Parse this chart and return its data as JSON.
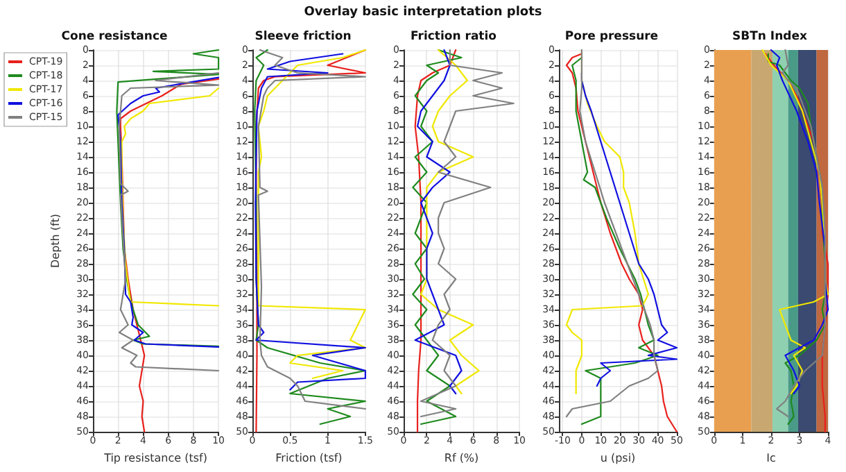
{
  "chart_data": [
    {
      "type": "line",
      "title": "Cone resistance",
      "xlabel": "Tip resistance (tsf)",
      "ylabel": "Depth (ft)",
      "annotations": [
        "Overlay basic interpretation plots"
      ],
      "orientation": "horizontal",
      "xlim": [
        0,
        10
      ],
      "xticks": [
        0,
        2,
        4,
        6,
        8,
        10
      ],
      "ylim": [
        50,
        0
      ],
      "yticks": [
        0,
        2,
        4,
        6,
        8,
        10,
        12,
        14,
        16,
        18,
        20,
        22,
        24,
        26,
        28,
        30,
        32,
        34,
        36,
        38,
        40,
        42,
        44,
        46,
        48,
        50
      ],
      "grid": true,
      "legend": "left",
      "marker": "none",
      "line_style": "solid",
      "series": [
        {
          "name": "CPT-19",
          "color": "#e8201c",
          "x": [
            3.8,
            4.5,
            5.5,
            6,
            8,
            9,
            10,
            14,
            20,
            26,
            30,
            34,
            36,
            38,
            40,
            42,
            44,
            46,
            48,
            50
          ],
          "values": [
            10,
            7,
            6,
            5.5,
            3,
            2.2,
            2.2,
            2.3,
            2.4,
            2.5,
            2.8,
            3.2,
            3.5,
            3.8,
            4.1,
            3.9,
            3.7,
            4,
            3.9,
            4.1
          ]
        },
        {
          "name": "CPT-18",
          "color": "#1e8a1e",
          "x": [
            0,
            0.5,
            1,
            2.5,
            2.8,
            3.2,
            4.2,
            8,
            12,
            20,
            26,
            30,
            32,
            34,
            36,
            37.5,
            38,
            38.5,
            38.8
          ],
          "values": [
            10,
            8,
            10,
            10,
            4.8,
            10,
            2,
            1.9,
            2,
            2.2,
            2.4,
            2.7,
            2.9,
            3.2,
            3.6,
            4.5,
            3.2,
            4,
            10
          ]
        },
        {
          "name": "CPT-17",
          "color": "#f0e800",
          "x": [
            5,
            6,
            7,
            8,
            9,
            10,
            11,
            12,
            16,
            22,
            28,
            32,
            33,
            33.5
          ],
          "values": [
            10,
            9.3,
            4.5,
            4,
            3,
            2.5,
            2.6,
            2.3,
            2.3,
            2.4,
            2.6,
            2.9,
            3,
            10
          ]
        },
        {
          "name": "CPT-16",
          "color": "#1010e0",
          "x": [
            3.6,
            5,
            5.5,
            6,
            7,
            8.5,
            12,
            20,
            26,
            32,
            33,
            35,
            36,
            37,
            38,
            38.5,
            38.9
          ],
          "values": [
            10,
            5,
            5.3,
            4,
            3,
            2,
            2.2,
            2.3,
            2.5,
            2.6,
            3,
            3.2,
            3.1,
            4,
            3.3,
            4.2,
            10
          ]
        },
        {
          "name": "CPT-15",
          "color": "#808080",
          "x": [
            3,
            4,
            4.6,
            5,
            6,
            10,
            17.5,
            18.5,
            19,
            30,
            32,
            34,
            36,
            37,
            38,
            39,
            40,
            41,
            41.5,
            42
          ],
          "values": [
            10,
            5,
            10,
            3,
            2.3,
            2.1,
            2.2,
            2.8,
            2.2,
            2.6,
            2.4,
            2.2,
            2.8,
            2.1,
            3.2,
            2.3,
            3.5,
            3,
            3.4,
            10
          ]
        }
      ]
    },
    {
      "type": "line",
      "title": "Sleeve friction",
      "xlabel": "Friction (tsf)",
      "orientation": "horizontal",
      "xlim": [
        0,
        1.5
      ],
      "xticks": [
        0,
        0.5,
        1,
        1.5
      ],
      "ylim": [
        50,
        0
      ],
      "yticks": [
        0,
        2,
        4,
        6,
        8,
        10,
        12,
        14,
        16,
        18,
        20,
        22,
        24,
        26,
        28,
        30,
        32,
        34,
        36,
        38,
        40,
        42,
        44,
        46,
        48,
        50
      ],
      "grid": true,
      "marker": "none",
      "line_style": "solid",
      "series": [
        {
          "color": "#e8201c",
          "x": [
            0,
            2,
            3,
            3.5,
            4,
            5,
            10,
            20,
            30,
            40,
            50
          ],
          "values": [
            1.5,
            1,
            1.5,
            0.3,
            0.15,
            0.08,
            0.05,
            0.05,
            0.06,
            0.06,
            0.05
          ]
        },
        {
          "color": "#1e8a1e",
          "x": [
            0,
            1,
            2,
            3,
            4,
            8,
            20,
            30,
            36,
            38,
            39,
            41,
            42,
            43,
            45,
            46,
            47,
            48,
            49
          ],
          "values": [
            0.2,
            0.05,
            0.15,
            0.1,
            0.05,
            0.03,
            0.05,
            0.05,
            0.08,
            0.05,
            0.2,
            0.9,
            1.5,
            1,
            0.5,
            1.5,
            1,
            1.3,
            0.9
          ]
        },
        {
          "color": "#f0e800",
          "x": [
            0,
            1,
            2,
            3,
            4,
            5,
            6,
            8,
            10,
            14,
            16,
            30,
            33.5,
            34,
            38,
            39,
            40,
            41,
            42,
            43
          ],
          "values": [
            1.5,
            1.2,
            0.6,
            0.5,
            0.4,
            0.3,
            0.2,
            0.15,
            0.08,
            0.12,
            0.08,
            0.08,
            0.08,
            1.5,
            1.3,
            1.5,
            0.6,
            0.5,
            1.2,
            0.8
          ]
        },
        {
          "color": "#1010e0",
          "x": [
            0.5,
            1.5,
            2.5,
            3,
            3.5,
            5,
            8,
            20,
            30,
            36,
            37,
            38,
            39,
            40,
            42,
            43,
            43.5,
            44.5
          ],
          "values": [
            1.2,
            0.5,
            0.2,
            1,
            0.2,
            0.12,
            0.06,
            0.04,
            0.05,
            0.08,
            0.15,
            0.05,
            1.5,
            0.8,
            1.5,
            1.5,
            0.6,
            0.5
          ]
        },
        {
          "color": "#808080",
          "x": [
            0,
            1,
            2,
            3,
            3.5,
            4,
            5,
            6,
            10,
            18,
            18.5,
            19,
            31,
            38,
            40,
            41.5,
            43,
            44,
            46,
            47
          ],
          "values": [
            0.1,
            0.4,
            0.3,
            0.6,
            1.5,
            0.3,
            0.2,
            0.15,
            0.08,
            0.1,
            0.2,
            0.08,
            0.12,
            0.1,
            0.12,
            0.2,
            0.5,
            0.6,
            0.7,
            1.5
          ]
        }
      ]
    },
    {
      "type": "line",
      "title": "Friction ratio",
      "xlabel": "Rf (%)",
      "orientation": "horizontal",
      "xlim": [
        0,
        10
      ],
      "xticks": [
        0,
        2,
        4,
        6,
        8,
        10
      ],
      "ylim": [
        50,
        0
      ],
      "yticks": [
        0,
        2,
        4,
        6,
        8,
        10,
        12,
        14,
        16,
        18,
        20,
        22,
        24,
        26,
        28,
        30,
        32,
        34,
        36,
        38,
        40,
        42,
        44,
        46,
        48,
        50
      ],
      "grid": true,
      "marker": "none",
      "line_style": "solid",
      "series": [
        {
          "color": "#e8201c",
          "x": [
            0,
            2,
            3,
            4,
            6,
            10,
            14,
            20,
            30,
            38,
            42,
            46,
            50
          ],
          "values": [
            4.5,
            4,
            2.5,
            1.5,
            1.2,
            1,
            1.3,
            1.5,
            1.5,
            1.5,
            1.3,
            1.2,
            1.2
          ]
        },
        {
          "color": "#1e8a1e",
          "x": [
            0,
            1,
            2,
            3,
            4,
            6,
            8,
            10,
            12,
            14,
            16,
            18,
            20,
            22,
            24,
            26,
            28,
            30,
            32,
            34,
            36,
            38,
            40,
            42,
            44,
            46,
            48,
            49
          ],
          "values": [
            3,
            5,
            2,
            3,
            2,
            1,
            2,
            1.5,
            2.5,
            1,
            2,
            0.8,
            2,
            1.5,
            1,
            2,
            1,
            1.8,
            0.8,
            2,
            1,
            2,
            3,
            2,
            4,
            2,
            4.5,
            1.5
          ]
        },
        {
          "color": "#f0e800",
          "x": [
            0,
            2,
            4,
            6,
            8,
            10,
            12,
            14,
            16,
            18,
            22,
            26,
            30,
            32,
            34,
            36,
            38,
            40,
            42,
            44,
            45
          ],
          "values": [
            3,
            4.5,
            5.5,
            4,
            3,
            2.5,
            3,
            6,
            3,
            2,
            2,
            2,
            2,
            1.5,
            3,
            6,
            4,
            5,
            6.5,
            4.5,
            5
          ]
        },
        {
          "color": "#1010e0",
          "x": [
            0,
            2,
            4,
            6,
            8,
            10,
            12,
            14,
            16,
            18,
            20,
            22,
            24,
            26,
            28,
            30,
            32,
            34,
            36,
            38,
            40,
            42,
            44,
            45
          ],
          "values": [
            3.5,
            4,
            3.5,
            2.5,
            1.5,
            1.2,
            2.5,
            2,
            4,
            2.5,
            1.5,
            2,
            2.5,
            2,
            2,
            2,
            2.5,
            3,
            3.5,
            1,
            4.5,
            5,
            4,
            4.5
          ]
        },
        {
          "color": "#808080",
          "x": [
            0,
            2,
            3,
            4,
            5,
            6,
            7,
            8,
            10,
            12,
            14,
            16,
            18,
            20,
            22,
            24,
            26,
            28,
            30,
            32,
            34,
            36,
            38,
            40,
            42,
            44,
            46,
            47,
            48
          ],
          "values": [
            4,
            4,
            8.5,
            6,
            8.5,
            6,
            9.5,
            4.5,
            4,
            3.5,
            4.5,
            3,
            7.5,
            3.5,
            3,
            3,
            3.5,
            3,
            4.5,
            3.5,
            4,
            3,
            2.5,
            4,
            3.5,
            4.5,
            1.5,
            4.5,
            1.5
          ]
        }
      ]
    },
    {
      "type": "line",
      "title": "Pore pressure",
      "xlabel": "u (psi)",
      "orientation": "horizontal",
      "xlim": [
        -12,
        50
      ],
      "xticks": [
        -10,
        0,
        10,
        20,
        30,
        40,
        50
      ],
      "ylim": [
        50,
        0
      ],
      "yticks": [
        0,
        2,
        4,
        6,
        8,
        10,
        12,
        14,
        16,
        18,
        20,
        22,
        24,
        26,
        28,
        30,
        32,
        34,
        36,
        38,
        40,
        42,
        44,
        46,
        48,
        50
      ],
      "grid": true,
      "marker": "none",
      "line_style": "solid",
      "series": [
        {
          "color": "#e8201c",
          "x": [
            0.5,
            1,
            2,
            3,
            5,
            8,
            12,
            16,
            20,
            24,
            28,
            30,
            32,
            34,
            36,
            38,
            40,
            42,
            44,
            46,
            48,
            50
          ],
          "values": [
            0,
            -5,
            -8,
            -5,
            -3,
            -2,
            2,
            6,
            10,
            15,
            21,
            25,
            30,
            32,
            30,
            32,
            38,
            40,
            42,
            43,
            45,
            50
          ]
        },
        {
          "color": "#1e8a1e",
          "x": [
            1,
            2,
            4,
            8,
            12,
            16,
            17,
            18,
            22,
            26,
            30,
            32,
            34,
            36,
            38,
            39,
            40,
            41,
            42,
            43,
            44,
            48,
            49
          ],
          "values": [
            0,
            -5,
            -3,
            -3,
            0,
            3,
            1,
            7,
            13,
            20,
            28,
            31,
            33,
            35,
            38,
            30,
            40,
            28,
            2,
            10,
            10,
            10,
            0
          ]
        },
        {
          "color": "#f0e800",
          "x": [
            0,
            4,
            7,
            10,
            12,
            14,
            16,
            18,
            20,
            24,
            28,
            32,
            33.5,
            34,
            36,
            37,
            38,
            40,
            42,
            45
          ],
          "values": [
            0,
            0,
            3,
            8,
            12,
            20,
            22,
            22,
            25,
            28,
            30,
            35,
            32,
            -5,
            -8,
            -5,
            0,
            0,
            -3,
            -3
          ]
        },
        {
          "color": "#1010e0",
          "x": [
            3,
            4,
            6,
            8,
            12,
            16,
            20,
            24,
            28,
            30,
            32,
            34,
            36,
            37,
            38,
            39,
            40,
            40.5,
            41,
            42,
            43,
            44
          ],
          "values": [
            0,
            0,
            2,
            5,
            10,
            15,
            20,
            25,
            30,
            35,
            38,
            40,
            42,
            45,
            40,
            50,
            35,
            50,
            10,
            15,
            10,
            8
          ]
        },
        {
          "color": "#808080",
          "x": [
            0,
            5,
            8,
            12,
            16,
            20,
            24,
            28,
            32,
            36,
            38,
            40,
            42,
            43,
            44,
            45,
            46,
            47,
            48
          ],
          "values": [
            0,
            0,
            -1,
            2,
            7,
            12,
            18,
            24,
            30,
            36,
            38,
            38,
            40,
            35,
            25,
            20,
            15,
            -5,
            -8
          ]
        }
      ]
    },
    {
      "type": "line",
      "title": "SBTn Index",
      "xlabel": "Ic",
      "orientation": "horizontal",
      "xlim": [
        0,
        4
      ],
      "xticks": [
        0,
        1,
        2,
        3,
        4
      ],
      "ylim": [
        50,
        0
      ],
      "yticks": [
        0,
        2,
        4,
        6,
        8,
        10,
        12,
        14,
        16,
        18,
        20,
        22,
        24,
        26,
        28,
        30,
        32,
        34,
        36,
        38,
        40,
        42,
        44,
        46,
        48,
        50
      ],
      "grid": true,
      "marker": "none",
      "line_style": "solid",
      "bands": [
        {
          "axis": "x",
          "from": 0,
          "to": 1.31,
          "color": "#e8a050"
        },
        {
          "axis": "x",
          "from": 1.31,
          "to": 2.05,
          "color": "#c8a870"
        },
        {
          "axis": "x",
          "from": 2.05,
          "to": 2.6,
          "color": "#8fd0b0"
        },
        {
          "axis": "x",
          "from": 2.6,
          "to": 2.95,
          "color": "#4a9a88"
        },
        {
          "axis": "x",
          "from": 2.95,
          "to": 3.6,
          "color": "#3a4a70"
        },
        {
          "axis": "x",
          "from": 3.6,
          "to": 4,
          "color": "#c06840"
        }
      ],
      "series": [
        {
          "color": "#e8201c",
          "x": [
            0.5,
            2,
            4,
            6,
            8,
            10,
            12,
            16,
            20,
            24,
            28,
            32,
            36,
            40,
            44,
            48,
            50
          ],
          "values": [
            1.8,
            2.1,
            2.6,
            2.9,
            3.1,
            3.3,
            3.5,
            3.7,
            3.8,
            3.8,
            4,
            4,
            3.9,
            3.8,
            3.8,
            3.9,
            3.9
          ]
        },
        {
          "color": "#1e8a1e",
          "x": [
            0.5,
            1.5,
            2,
            4,
            5,
            7,
            10,
            14,
            18,
            22,
            28,
            32,
            34,
            36,
            38,
            40,
            41,
            42,
            44,
            46,
            48,
            49
          ],
          "values": [
            1.9,
            1.9,
            2.3,
            2.7,
            3,
            3.3,
            3.4,
            3.6,
            3.8,
            3.8,
            3.9,
            3.9,
            3.8,
            3.9,
            3.6,
            3,
            2.5,
            2.7,
            2.8,
            2.7,
            2.8,
            2.6
          ]
        },
        {
          "color": "#f0e800",
          "x": [
            0,
            2,
            4,
            8,
            12,
            16,
            20,
            26,
            30,
            32,
            33,
            34,
            36,
            38,
            39,
            40,
            42,
            44,
            45
          ],
          "values": [
            1.7,
            2,
            2.6,
            3.1,
            3.4,
            3.7,
            3.8,
            3.9,
            3.9,
            4,
            3.5,
            2.3,
            2.5,
            2.7,
            3.2,
            2.8,
            3.1,
            2.9,
            2.7
          ]
        },
        {
          "color": "#1010e0",
          "x": [
            0,
            1,
            2,
            4,
            8,
            12,
            16,
            20,
            26,
            30,
            34,
            36,
            38,
            40,
            42,
            44,
            45
          ],
          "values": [
            2,
            2.3,
            2.2,
            2.4,
            2.9,
            3.3,
            3.6,
            3.7,
            3.9,
            3.9,
            4,
            3.8,
            3.5,
            2.5,
            2.8,
            3,
            2.8
          ]
        },
        {
          "color": "#808080",
          "x": [
            0,
            2,
            3,
            4,
            5,
            7,
            10,
            14,
            18,
            24,
            30,
            36,
            40,
            42,
            44,
            46,
            47,
            48
          ],
          "values": [
            2.5,
            2.6,
            2.4,
            2.6,
            2.9,
            3.1,
            3.4,
            3.6,
            3.8,
            3.9,
            3.9,
            3.9,
            3.8,
            3.2,
            2.8,
            2.5,
            2.2,
            2.6
          ]
        }
      ]
    }
  ]
}
